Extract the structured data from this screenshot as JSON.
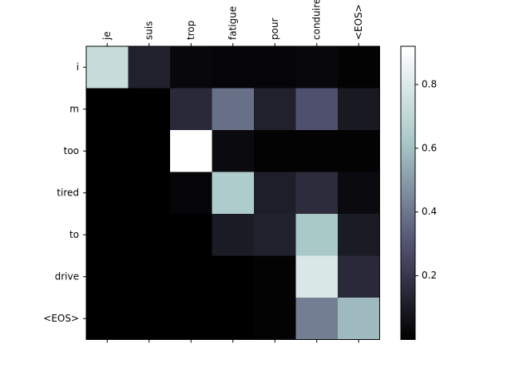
{
  "chart_data": {
    "type": "heatmap",
    "title": "",
    "xlabel": "",
    "ylabel": "",
    "x_categories": [
      "je",
      "suis",
      "trop",
      "fatigue",
      "pour",
      "conduire",
      "<EOS>"
    ],
    "y_categories": [
      "i",
      "m",
      "too",
      "tired",
      "to",
      "drive",
      "<EOS>"
    ],
    "values": [
      [
        0.73,
        0.12,
        0.03,
        0.02,
        0.02,
        0.03,
        0.01
      ],
      [
        0.0,
        0.0,
        0.15,
        0.38,
        0.12,
        0.29,
        0.09
      ],
      [
        0.0,
        0.0,
        0.92,
        0.04,
        0.01,
        0.01,
        0.01
      ],
      [
        0.0,
        0.0,
        0.02,
        0.64,
        0.11,
        0.16,
        0.04
      ],
      [
        0.0,
        0.0,
        0.0,
        0.1,
        0.12,
        0.62,
        0.1
      ],
      [
        0.0,
        0.0,
        0.0,
        0.0,
        0.01,
        0.79,
        0.15
      ],
      [
        0.0,
        0.0,
        0.0,
        0.0,
        0.01,
        0.42,
        0.58
      ]
    ],
    "colormap": "bone",
    "colormap_stops": [
      "#000000",
      "#545474",
      "#a7c7c7",
      "#ffffff"
    ],
    "colorbar": {
      "vmin": 0.0,
      "vmax": 0.92,
      "ticks": [
        0.2,
        0.4,
        0.6,
        0.8
      ],
      "tick_labels": [
        "0.2",
        "0.4",
        "0.6",
        "0.8"
      ]
    },
    "x_tick_position": "top",
    "x_tick_rotation": "vertical",
    "grid": false,
    "legend": "none"
  }
}
